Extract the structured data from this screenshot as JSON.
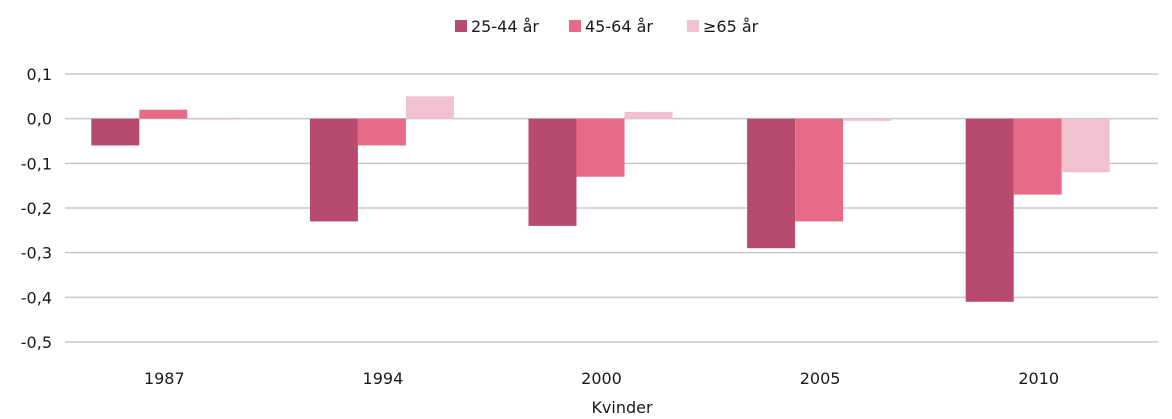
{
  "chart_data": {
    "type": "bar",
    "title": "",
    "xlabel": "Kvinder",
    "ylabel": "",
    "categories": [
      "1987",
      "1994",
      "2000",
      "2005",
      "2010"
    ],
    "series": [
      {
        "name": "25-44 år",
        "color": "#b84a6e",
        "values": [
          -0.06,
          -0.23,
          -0.24,
          -0.29,
          -0.41
        ]
      },
      {
        "name": "45-64 år",
        "color": "#e76b87",
        "values": [
          0.02,
          -0.06,
          -0.13,
          -0.23,
          -0.17
        ]
      },
      {
        "name": "≥65 år",
        "color": "#f2c1d0",
        "values": [
          0.0,
          0.05,
          0.015,
          -0.005,
          -0.12
        ]
      }
    ],
    "ylim": [
      -0.5,
      0.1
    ],
    "yticks": [
      0.1,
      0.0,
      -0.1,
      -0.2,
      -0.3,
      -0.4,
      -0.5
    ],
    "ytick_labels": [
      "0,1",
      "0,0",
      "-0,1",
      "-0,2",
      "-0,3",
      "-0,4",
      "-0,5"
    ],
    "grid": true,
    "legend_position": "top-center"
  }
}
